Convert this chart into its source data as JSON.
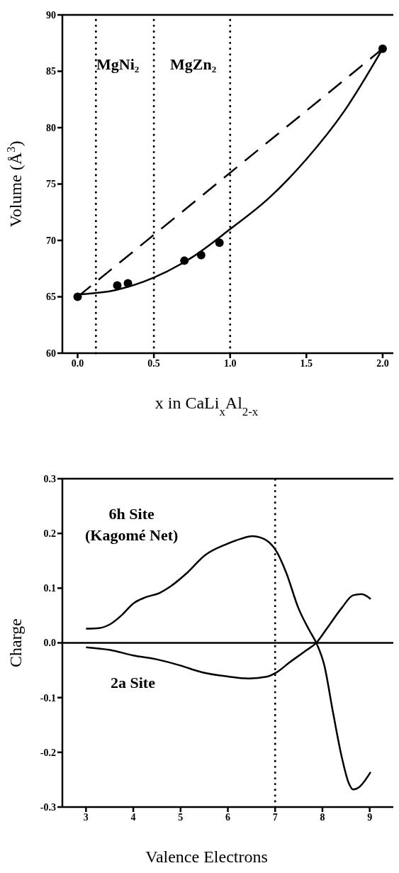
{
  "chart_data": [
    {
      "type": "line",
      "xlabel": "x in CaLi$_{x}$Al$_{2-x}$",
      "ylabel": "Volume (Å$^{3}$)",
      "xlim": [
        -0.1,
        2.07
      ],
      "ylim": [
        60,
        90
      ],
      "xticks": [
        {
          "value": 0,
          "label": "0.0"
        },
        {
          "value": 0.5,
          "label": "0.5"
        },
        {
          "value": 1,
          "label": "1.0"
        },
        {
          "value": 1.5,
          "label": "1.5"
        },
        {
          "value": 2,
          "label": "2.0"
        }
      ],
      "yticks": [
        60,
        65,
        70,
        75,
        80,
        85,
        90
      ],
      "annotations": [
        "MgNi₂",
        "MgZn₂"
      ],
      "ref_lines": [
        {
          "axis": "x",
          "value": 0.12,
          "color": "#000000",
          "line_style": "dotted"
        },
        {
          "axis": "x",
          "value": 0.5,
          "color": "#000000",
          "line_style": "dotted"
        },
        {
          "axis": "x",
          "value": 1.0,
          "color": "#000000",
          "line_style": "dotted"
        }
      ],
      "series": [
        {
          "type": "scatter",
          "marker": "circle",
          "color": "#000000",
          "x": [
            0,
            0.26,
            0.33,
            0.7,
            0.81,
            0.93,
            2.0
          ],
          "values": [
            65,
            66,
            66.2,
            68.2,
            68.7,
            69.8,
            87
          ]
        },
        {
          "line_style": "solid",
          "color": "#000000",
          "x": [
            0,
            0.25,
            0.5,
            0.75,
            1.0,
            1.25,
            1.5,
            1.75,
            2.0
          ],
          "values": [
            65.2,
            65.6,
            66.7,
            68.5,
            71,
            73.7,
            77.2,
            81.5,
            87
          ]
        },
        {
          "line_style": "dashed",
          "color": "#000000",
          "x": [
            0,
            2.0
          ],
          "values": [
            65,
            87
          ]
        }
      ]
    },
    {
      "type": "line",
      "xlabel": "Valence Electrons",
      "ylabel": "Charge",
      "xlim": [
        2.5,
        9.5
      ],
      "ylim": [
        -0.3,
        0.3
      ],
      "xticks": [
        3,
        4,
        5,
        6,
        7,
        8,
        9
      ],
      "yticks": [
        -0.3,
        -0.2,
        -0.1,
        {
          "value": 0,
          "label": "0.0"
        },
        0.1,
        0.2,
        0.3
      ],
      "ref_lines": [
        {
          "axis": "y",
          "value": 0,
          "color": "#000000",
          "line_style": "solid"
        },
        {
          "axis": "x",
          "value": 7,
          "color": "#000000",
          "line_style": "dotted"
        }
      ],
      "annotations": [
        "6h Site\n(Kagomé Net)",
        "2a Site"
      ],
      "series": [
        {
          "line_style": "solid",
          "color": "#000000",
          "x": [
            3,
            3.27,
            3.51,
            3.76,
            4.0,
            4.25,
            4.55,
            4.8,
            5.1,
            5.53,
            5.96,
            6.27,
            6.51,
            6.76,
            7.03,
            7.24,
            7.49,
            7.73,
            7.87,
            8.04,
            8.22,
            8.41,
            8.56,
            8.65,
            8.77,
            9.02
          ],
          "values": [
            0.026,
            0.027,
            0.034,
            0.051,
            0.072,
            0.083,
            0.091,
            0.104,
            0.125,
            0.161,
            0.18,
            0.19,
            0.195,
            0.19,
            0.167,
            0.127,
            0.064,
            0.022,
            0,
            -0.041,
            -0.125,
            -0.209,
            -0.257,
            -0.268,
            -0.264,
            -0.236
          ]
        },
        {
          "line_style": "solid",
          "color": "#000000",
          "x": [
            3,
            3.51,
            4.0,
            4.49,
            4.98,
            5.47,
            5.96,
            6.45,
            6.82,
            7.03,
            7.3,
            7.67,
            7.87,
            8.1,
            8.41,
            8.65,
            8.83,
            9.02
          ],
          "values": [
            -0.008,
            -0.013,
            -0.023,
            -0.03,
            -0.041,
            -0.054,
            -0.061,
            -0.065,
            -0.062,
            -0.054,
            -0.036,
            -0.013,
            0,
            0.027,
            0.064,
            0.087,
            0.089,
            0.08
          ]
        }
      ]
    }
  ]
}
